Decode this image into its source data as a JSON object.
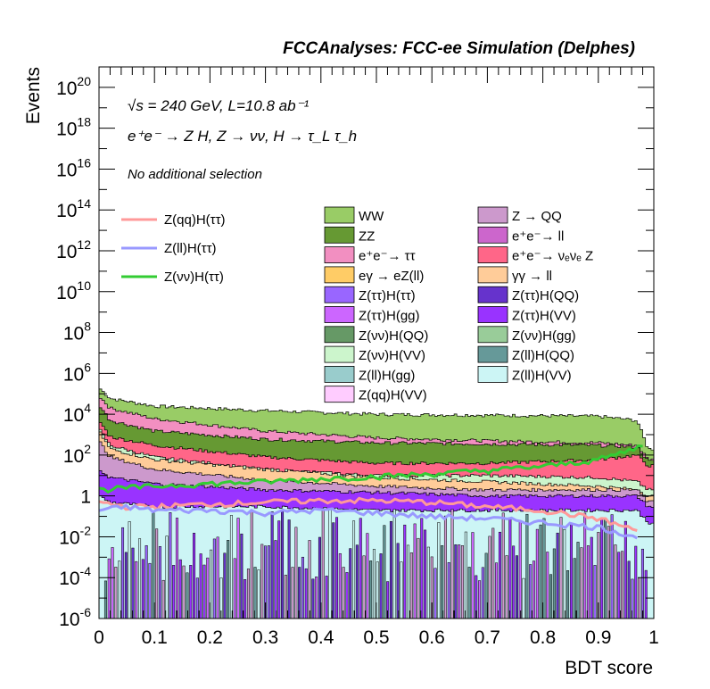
{
  "header": {
    "title": "FCCAnalyses: FCC-ee Simulation (Delphes)"
  },
  "annotations": {
    "energy": "√s = 240 GeV, L=10.8 ab⁻¹",
    "process": "e⁺e⁻ → Z H, Z → νν, H → τ_L τ_h",
    "selection": "No additional selection"
  },
  "chart_data": {
    "type": "area",
    "xlabel": "BDT score",
    "ylabel": "Events",
    "xlim": [
      0,
      1
    ],
    "ylim": [
      1e-06,
      1e+21
    ],
    "yscale": "log",
    "x_ticks": [
      "0",
      "0.1",
      "0.2",
      "0.3",
      "0.4",
      "0.5",
      "0.6",
      "0.7",
      "0.8",
      "0.9",
      "1"
    ],
    "y_ticks": [
      {
        "base": "10",
        "exp": "-6"
      },
      {
        "base": "10",
        "exp": "-4"
      },
      {
        "base": "10",
        "exp": "-2"
      },
      {
        "base": "1",
        "exp": ""
      },
      {
        "base": "10",
        "exp": "2"
      },
      {
        "base": "10",
        "exp": "4"
      },
      {
        "base": "10",
        "exp": "6"
      },
      {
        "base": "10",
        "exp": "8"
      },
      {
        "base": "10",
        "exp": "10"
      },
      {
        "base": "10",
        "exp": "12"
      },
      {
        "base": "10",
        "exp": "14"
      },
      {
        "base": "10",
        "exp": "16"
      },
      {
        "base": "10",
        "exp": "18"
      },
      {
        "base": "10",
        "exp": "20"
      }
    ],
    "stack_layers": [
      {
        "name": "WW",
        "color": "#99cc66",
        "x": [
          0,
          0.02,
          0.1,
          0.3,
          0.5,
          0.7,
          0.9,
          0.97,
          0.99
        ],
        "y": [
          200000,
          60000,
          25000,
          15000,
          10000,
          9000,
          8000,
          5000,
          200
        ]
      },
      {
        "name": "e⁺e⁻→ ττ",
        "color": "#f28fc1",
        "x": [
          0,
          0.02,
          0.1,
          0.3,
          0.5,
          0.7,
          0.9,
          0.97,
          0.99
        ],
        "y": [
          80000,
          20000,
          6000,
          1500,
          700,
          500,
          400,
          300,
          60
        ]
      },
      {
        "name": "ZZ",
        "color": "#669933",
        "x": [
          0,
          0.02,
          0.1,
          0.3,
          0.5,
          0.7,
          0.9,
          0.97,
          0.99
        ],
        "y": [
          30000,
          5000,
          1500,
          600,
          400,
          350,
          300,
          250,
          50
        ]
      },
      {
        "name": "e⁺e⁻→ νₑνₑ Z",
        "color": "#ff6688",
        "x": [
          0,
          0.02,
          0.1,
          0.3,
          0.5,
          0.7,
          0.9,
          0.97,
          0.99
        ],
        "y": [
          5000,
          800,
          300,
          80,
          40,
          40,
          60,
          100,
          30
        ]
      },
      {
        "name": "Z(νν)H(VV)",
        "color": "#ccf5cc",
        "x": [
          0,
          0.02,
          0.1,
          0.3,
          0.5,
          0.7,
          0.9,
          0.97,
          0.99
        ],
        "y": [
          2000,
          300,
          80,
          20,
          10,
          10,
          8,
          5,
          2
        ]
      },
      {
        "name": "γγ → ll",
        "color": "#ffcc99",
        "x": [
          0,
          0.02,
          0.1,
          0.3,
          0.5,
          0.7,
          0.9,
          0.97,
          0.99
        ],
        "y": [
          1500,
          200,
          60,
          20,
          8,
          5,
          3,
          2,
          1
        ]
      },
      {
        "name": "Z → QQ",
        "color": "#cc99cc",
        "x": [
          0,
          0.02,
          0.1,
          0.3,
          0.5,
          0.7,
          0.9,
          0.97,
          0.99
        ],
        "y": [
          500,
          80,
          20,
          6,
          3,
          2,
          2,
          2,
          0.5
        ]
      },
      {
        "name": "Z(ττ)H(VV)",
        "color": "#9933ff",
        "x": [
          0,
          0.02,
          0.1,
          0.3,
          0.5,
          0.7,
          0.9,
          0.97,
          0.99
        ],
        "y": [
          20,
          8,
          4,
          2,
          1.5,
          1,
          1,
          1,
          0.3
        ]
      },
      {
        "name": "Z(ll)H(VV)",
        "color": "#ccf5f5",
        "x": [
          0,
          0.02,
          0.1,
          0.3,
          0.5,
          0.7,
          0.9,
          0.97,
          0.99
        ],
        "y": [
          1,
          0.5,
          0.3,
          0.3,
          0.2,
          0.2,
          0.2,
          0.2,
          0.05
        ]
      }
    ],
    "series": [
      {
        "name": "Z(qq)H(ττ)",
        "color": "#ff9999",
        "x": [
          0,
          0.05,
          0.1,
          0.2,
          0.3,
          0.4,
          0.5,
          0.6,
          0.7,
          0.8,
          0.9,
          0.97
        ],
        "y": [
          0.5,
          0.3,
          0.3,
          0.4,
          0.5,
          0.6,
          0.6,
          0.5,
          0.3,
          0.2,
          0.08,
          0.02
        ]
      },
      {
        "name": "Z(ll)H(ττ)",
        "color": "#9999ff",
        "x": [
          0,
          0.05,
          0.1,
          0.2,
          0.3,
          0.4,
          0.5,
          0.6,
          0.7,
          0.8,
          0.9,
          0.97
        ],
        "y": [
          0.2,
          0.3,
          0.2,
          0.2,
          0.15,
          0.2,
          0.15,
          0.1,
          0.08,
          0.05,
          0.03,
          0.01
        ]
      },
      {
        "name": "Z(νν)H(ττ)",
        "color": "#33cc33",
        "x": [
          0,
          0.05,
          0.1,
          0.2,
          0.3,
          0.4,
          0.5,
          0.6,
          0.7,
          0.8,
          0.9,
          0.95,
          0.98
        ],
        "y": [
          2,
          2.5,
          3,
          4,
          5,
          7,
          9,
          12,
          18,
          28,
          60,
          150,
          300
        ]
      }
    ],
    "legend": {
      "signals": [
        "Z(qq)H(ττ)",
        "Z(ll)H(ττ)",
        "Z(νν)H(ττ)"
      ],
      "backgrounds": [
        {
          "name": "WW",
          "color": "#99cc66"
        },
        {
          "name": "Z → QQ",
          "color": "#cc99cc"
        },
        {
          "name": "ZZ",
          "color": "#669933"
        },
        {
          "name": "e⁺e⁻→ ll",
          "color": "#cc66cc"
        },
        {
          "name": "e⁺e⁻→ ττ",
          "color": "#f28fc1"
        },
        {
          "name": "e⁺e⁻→ νₑνₑ Z",
          "color": "#ff6688"
        },
        {
          "name": "eγ → eZ(ll)",
          "color": "#ffcc66"
        },
        {
          "name": "γγ → ll",
          "color": "#ffcc99"
        },
        {
          "name": "Z(ττ)H(ττ)",
          "color": "#9966ff"
        },
        {
          "name": "Z(ττ)H(QQ)",
          "color": "#6633cc"
        },
        {
          "name": "Z(ττ)H(gg)",
          "color": "#cc66ff"
        },
        {
          "name": "Z(ττ)H(VV)",
          "color": "#9933ff"
        },
        {
          "name": "Z(νν)H(QQ)",
          "color": "#669966"
        },
        {
          "name": "Z(νν)H(gg)",
          "color": "#99cc99"
        },
        {
          "name": "Z(νν)H(VV)",
          "color": "#ccf5cc"
        },
        {
          "name": "Z(ll)H(QQ)",
          "color": "#669999"
        },
        {
          "name": "Z(ll)H(gg)",
          "color": "#99cccc"
        },
        {
          "name": "Z(ll)H(VV)",
          "color": "#ccf5f5"
        },
        {
          "name": "Z(qq)H(VV)",
          "color": "#ffccff"
        }
      ]
    }
  }
}
